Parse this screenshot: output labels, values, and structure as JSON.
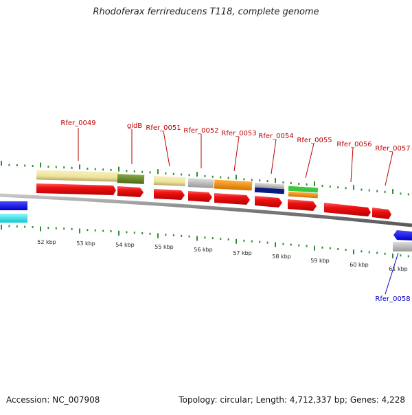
{
  "header": {
    "title": "Rhodoferax ferrireducens T118, complete genome"
  },
  "footer": {
    "accession": "Accession: NC_007908",
    "topology": "Topology: circular; Length: 4,712,337 bp; Genes: 4,228"
  },
  "colors": {
    "backbone": "#8a8a8a",
    "tick": "#2e8b2e",
    "forward_gene": "#ee1111",
    "label_forward": "#bb0000",
    "label_reverse": "#0000cc",
    "khaki": "#ede39a",
    "olive": "#6e8c2a",
    "grey": "#b9b9b9",
    "orange": "#f28c00",
    "navy": "#0a1a80",
    "green": "#3cc83c",
    "blue": "#0a0aff",
    "cyan": "#19e6f0"
  },
  "scale_labels": [
    "52 kbp",
    "53 kbp",
    "54 kbp",
    "55 kbp",
    "56 kbp",
    "57 kbp",
    "58 kbp",
    "59 kbp",
    "60 kbp",
    "61 kbp"
  ],
  "gene_labels_forward": [
    "Rfer_0049",
    "gidB",
    "Rfer_0051",
    "Rfer_0052",
    "Rfer_0053",
    "Rfer_0054",
    "Rfer_0055",
    "Rfer_0056",
    "Rfer_0057"
  ],
  "gene_labels_reverse": [
    "Rfer_0058"
  ]
}
